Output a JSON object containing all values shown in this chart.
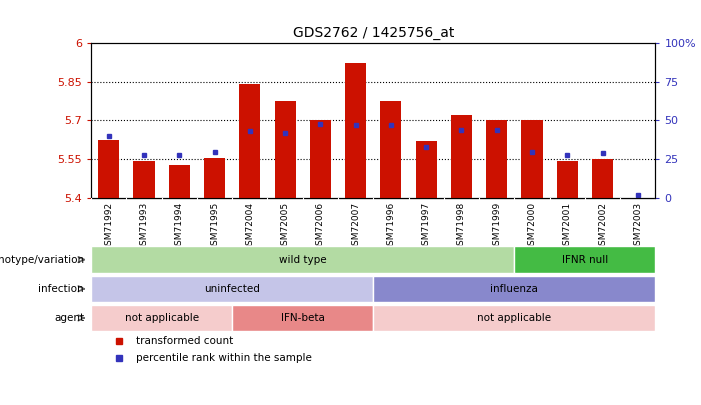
{
  "title": "GDS2762 / 1425756_at",
  "samples": [
    "GSM71992",
    "GSM71993",
    "GSM71994",
    "GSM71995",
    "GSM72004",
    "GSM72005",
    "GSM72006",
    "GSM72007",
    "GSM71996",
    "GSM71997",
    "GSM71998",
    "GSM71999",
    "GSM72000",
    "GSM72001",
    "GSM72002",
    "GSM72003"
  ],
  "bar_tops": [
    5.625,
    5.545,
    5.53,
    5.555,
    5.84,
    5.775,
    5.7,
    5.92,
    5.775,
    5.62,
    5.72,
    5.7,
    5.7,
    5.545,
    5.55,
    5.402
  ],
  "blue_pct": [
    40,
    28,
    28,
    30,
    43,
    42,
    48,
    47,
    47,
    33,
    44,
    44,
    30,
    28,
    29,
    2
  ],
  "bar_base": 5.4,
  "ylim_left": [
    5.4,
    6.0
  ],
  "ylim_right": [
    0,
    100
  ],
  "yticks_left": [
    5.4,
    5.55,
    5.7,
    5.85,
    6.0
  ],
  "yticks_right": [
    0,
    25,
    50,
    75,
    100
  ],
  "ytick_labels_left": [
    "5.4",
    "5.55",
    "5.7",
    "5.85",
    "6"
  ],
  "ytick_labels_right": [
    "0",
    "25",
    "50",
    "75",
    "100%"
  ],
  "hlines": [
    5.55,
    5.7,
    5.85
  ],
  "bar_color": "#cc1100",
  "blue_color": "#3333bb",
  "annotation_rows": [
    {
      "label": "genotype/variation",
      "segments": [
        {
          "text": "wild type",
          "start": 0,
          "end": 11,
          "color": "#b3dba3"
        },
        {
          "text": "IFNR null",
          "start": 12,
          "end": 15,
          "color": "#44bb44"
        }
      ]
    },
    {
      "label": "infection",
      "segments": [
        {
          "text": "uninfected",
          "start": 0,
          "end": 7,
          "color": "#c5c5e8"
        },
        {
          "text": "influenza",
          "start": 8,
          "end": 15,
          "color": "#8888cc"
        }
      ]
    },
    {
      "label": "agent",
      "segments": [
        {
          "text": "not applicable",
          "start": 0,
          "end": 3,
          "color": "#f5cccc"
        },
        {
          "text": "IFN-beta",
          "start": 4,
          "end": 7,
          "color": "#e88888"
        },
        {
          "text": "not applicable",
          "start": 8,
          "end": 15,
          "color": "#f5cccc"
        }
      ]
    }
  ],
  "legend_items": [
    {
      "label": "transformed count",
      "color": "#cc1100"
    },
    {
      "label": "percentile rank within the sample",
      "color": "#3333bb"
    }
  ]
}
